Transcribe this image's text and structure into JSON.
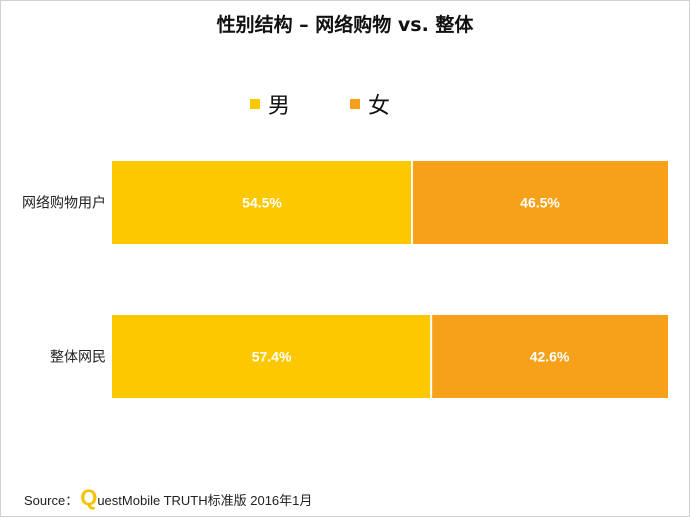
{
  "chart_data": {
    "type": "bar",
    "orientation": "horizontal",
    "stacked": true,
    "title": "性别结构 – 网络购物 vs. 整体",
    "categories": [
      "网络购物用户",
      "整体网民"
    ],
    "series": [
      {
        "name": "男",
        "color": "#FDC800",
        "values": [
          54.5,
          57.4
        ],
        "labels": [
          "54.5%",
          "57.4%"
        ]
      },
      {
        "name": "女",
        "color": "#F7A11A",
        "values": [
          46.5,
          42.6
        ],
        "labels": [
          "46.5%",
          "42.6%"
        ]
      }
    ],
    "legend_position": "top",
    "grid": false
  },
  "source": {
    "prefix": "Source：",
    "logo_letter": "Q",
    "text": "uestMobile TRUTH标准版 2016年1月"
  }
}
